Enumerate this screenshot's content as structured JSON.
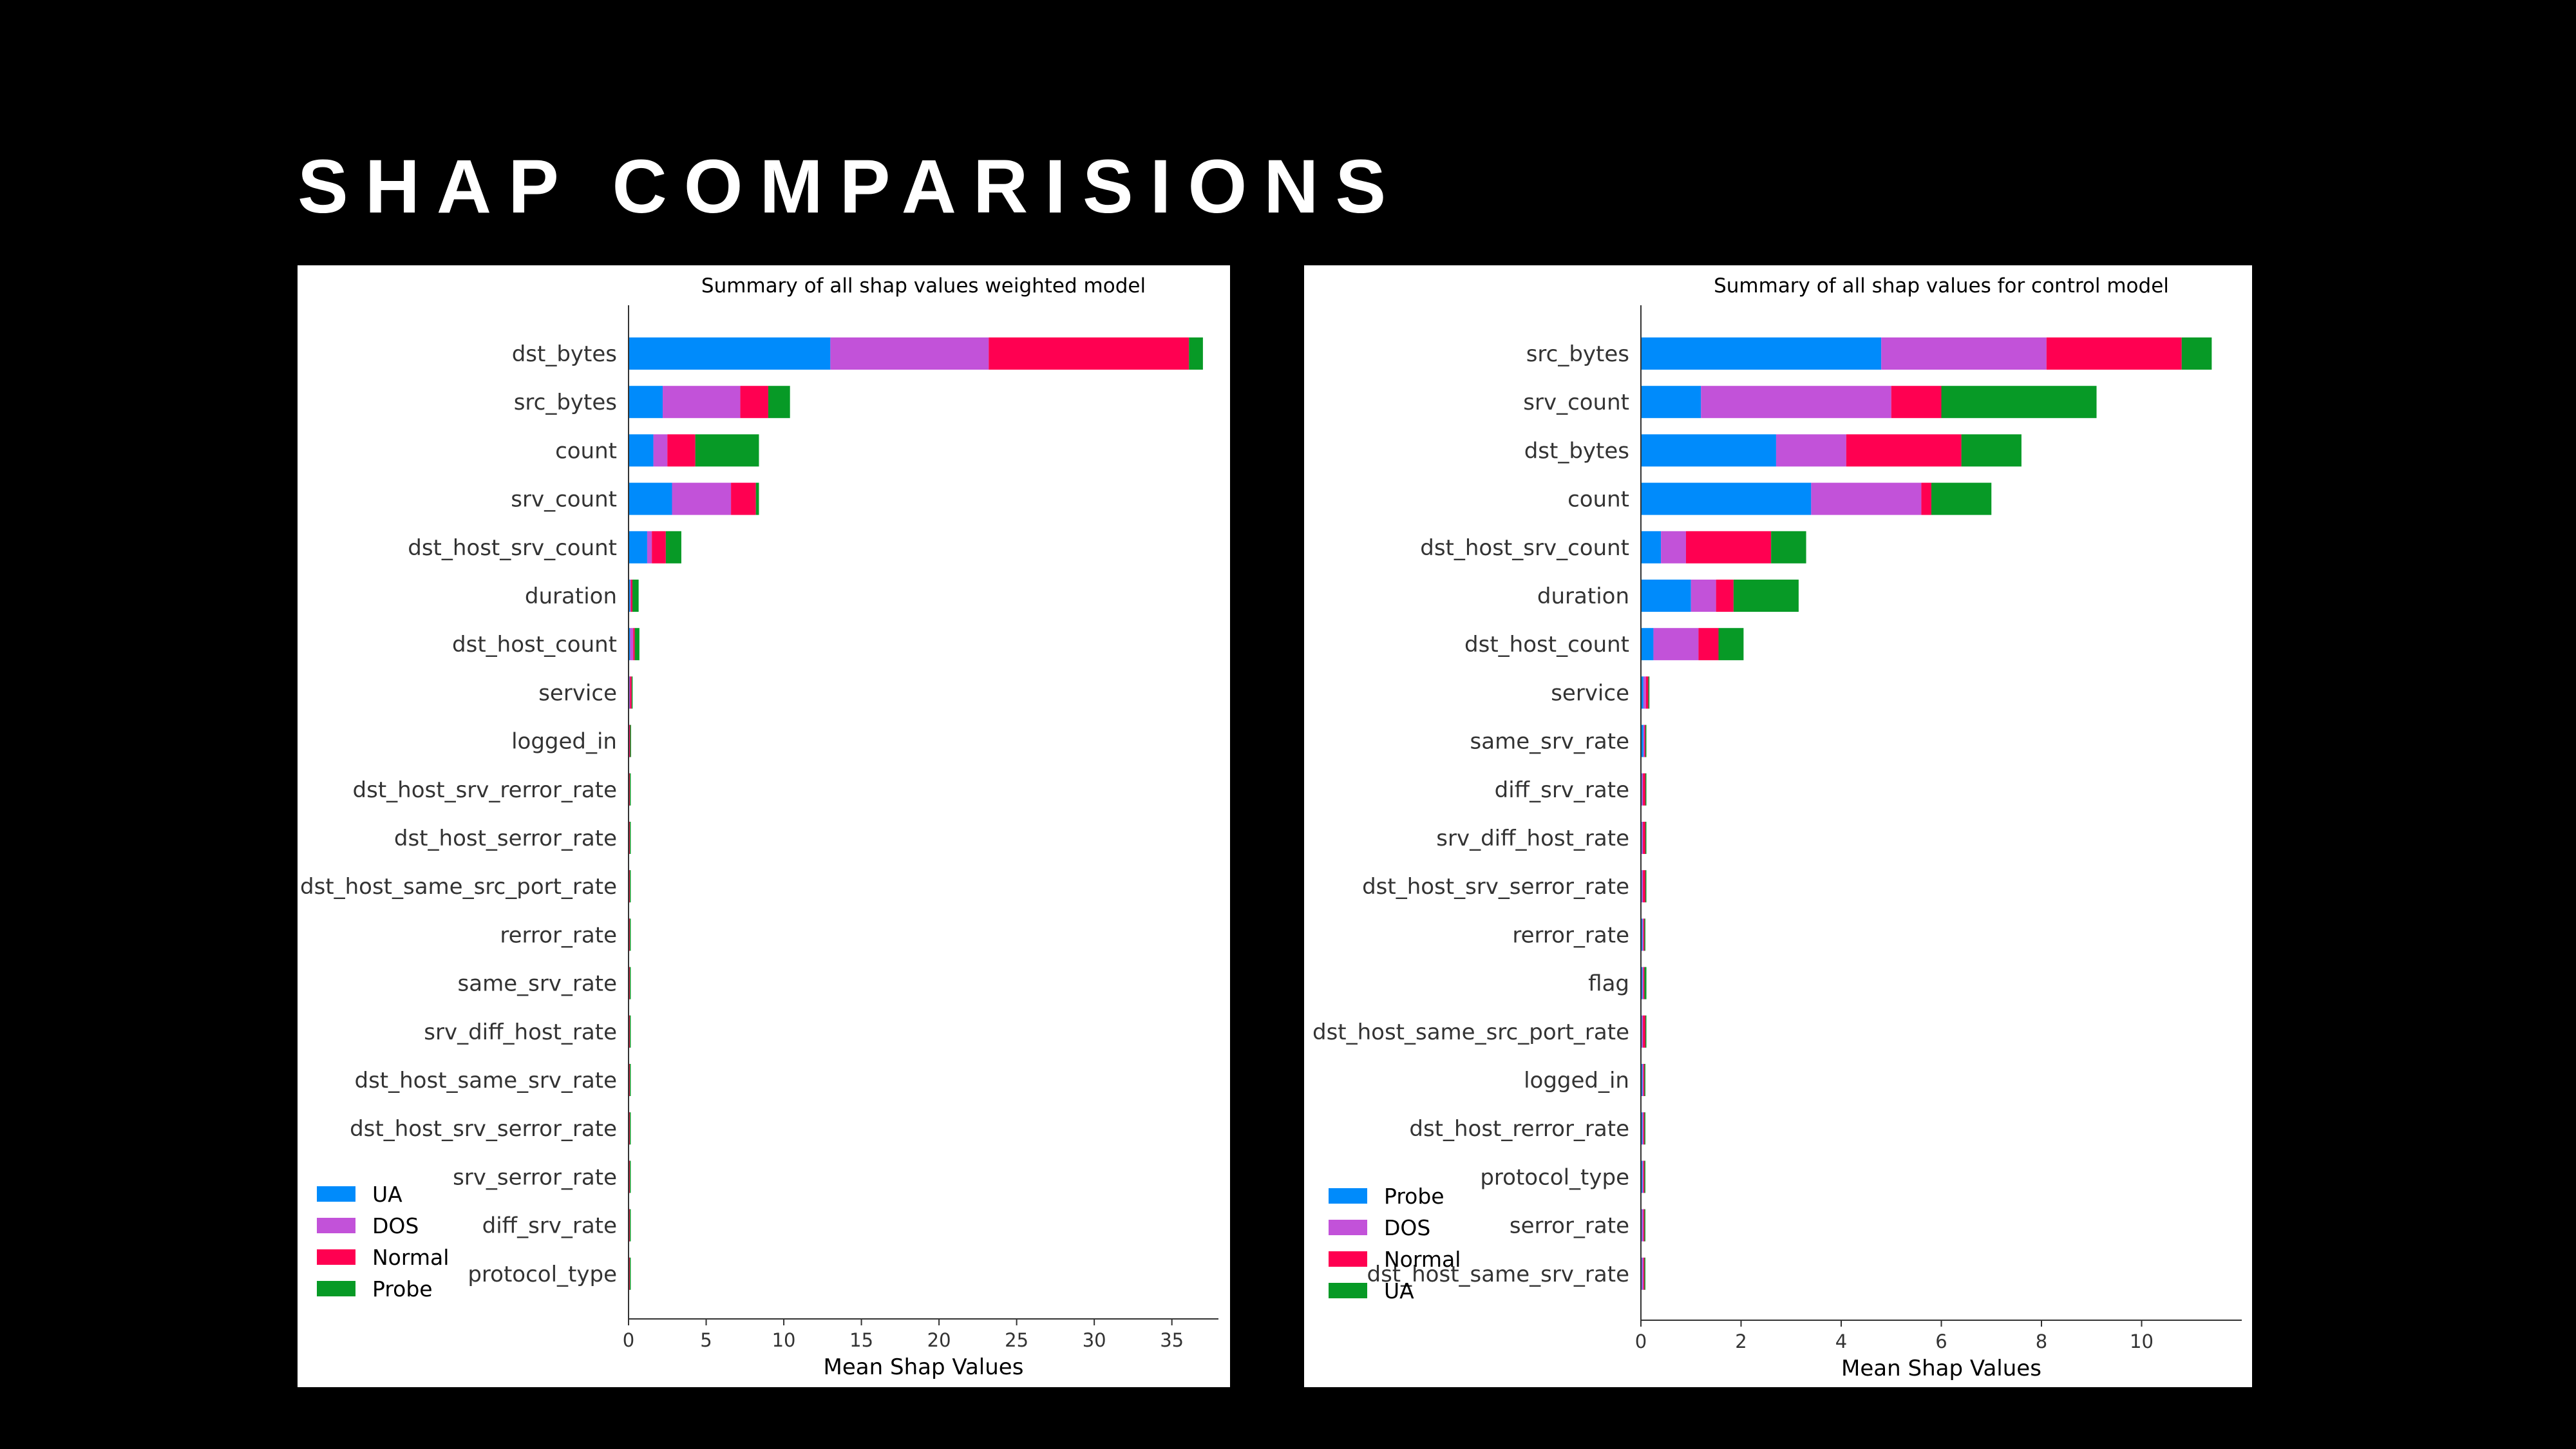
{
  "slide": {
    "title": "SHAP COMPARISIONS"
  },
  "colors": {
    "blue": "#008bfb",
    "purple": "#c252d9",
    "red": "#ff0051",
    "green": "#079a26"
  },
  "chart_data": [
    {
      "type": "bar",
      "orientation": "horizontal",
      "stacked": true,
      "title": "Summary of all shap values weighted model",
      "xlabel": "Mean Shap Values",
      "ylabel": "",
      "xlim": [
        0,
        38
      ],
      "xticks": [
        0,
        5,
        10,
        15,
        20,
        25,
        30,
        35
      ],
      "legend_position": "bottom-left",
      "categories": [
        "dst_bytes",
        "src_bytes",
        "count",
        "srv_count",
        "dst_host_srv_count",
        "duration",
        "dst_host_count",
        "service",
        "logged_in",
        "dst_host_srv_rerror_rate",
        "dst_host_serror_rate",
        "dst_host_same_src_port_rate",
        "rerror_rate",
        "same_srv_rate",
        "srv_diff_host_rate",
        "dst_host_same_srv_rate",
        "dst_host_srv_serror_rate",
        "srv_serror_rate",
        "diff_srv_rate",
        "protocol_type"
      ],
      "series": [
        {
          "name": "UA",
          "color": "#008bfb",
          "values": [
            13.0,
            2.2,
            1.6,
            2.8,
            1.2,
            0.1,
            0.1,
            0.05,
            0.03,
            0.02,
            0.02,
            0.02,
            0.02,
            0.02,
            0.02,
            0.02,
            0.02,
            0.02,
            0.02,
            0.02
          ]
        },
        {
          "name": "DOS",
          "color": "#c252d9",
          "values": [
            10.2,
            5.0,
            0.9,
            3.8,
            0.3,
            0.05,
            0.2,
            0.05,
            0.02,
            0.02,
            0.02,
            0.02,
            0.02,
            0.02,
            0.02,
            0.02,
            0.02,
            0.02,
            0.02,
            0.02
          ]
        },
        {
          "name": "Normal",
          "color": "#ff0051",
          "values": [
            12.9,
            1.8,
            1.8,
            1.6,
            0.9,
            0.1,
            0.1,
            0.1,
            0.05,
            0.04,
            0.04,
            0.04,
            0.04,
            0.04,
            0.04,
            0.04,
            0.04,
            0.04,
            0.04,
            0.04
          ]
        },
        {
          "name": "Probe",
          "color": "#079a26",
          "values": [
            0.9,
            1.4,
            4.1,
            0.2,
            1.0,
            0.4,
            0.3,
            0.02,
            0.01,
            0.01,
            0.01,
            0.01,
            0.01,
            0.01,
            0.01,
            0.01,
            0.01,
            0.01,
            0.01,
            0.01
          ]
        }
      ]
    },
    {
      "type": "bar",
      "orientation": "horizontal",
      "stacked": true,
      "title": "Summary of all shap values for control model",
      "xlabel": "Mean Shap Values",
      "ylabel": "",
      "xlim": [
        0,
        12
      ],
      "xticks": [
        0,
        2,
        4,
        6,
        8,
        10
      ],
      "legend_position": "bottom-left",
      "categories": [
        "src_bytes",
        "srv_count",
        "dst_bytes",
        "count",
        "dst_host_srv_count",
        "duration",
        "dst_host_count",
        "service",
        "same_srv_rate",
        "diff_srv_rate",
        "srv_diff_host_rate",
        "dst_host_srv_serror_rate",
        "rerror_rate",
        "flag",
        "dst_host_same_src_port_rate",
        "logged_in",
        "dst_host_rerror_rate",
        "protocol_type",
        "serror_rate",
        "dst_host_same_srv_rate"
      ],
      "series": [
        {
          "name": "Probe",
          "color": "#008bfb",
          "values": [
            4.8,
            1.2,
            2.7,
            3.4,
            0.4,
            1.0,
            0.25,
            0.05,
            0.05,
            0.02,
            0.02,
            0.02,
            0.03,
            0.03,
            0.02,
            0.03,
            0.03,
            0.03,
            0.02,
            0.02
          ]
        },
        {
          "name": "DOS",
          "color": "#c252d9",
          "values": [
            3.3,
            3.8,
            1.4,
            2.2,
            0.5,
            0.5,
            0.9,
            0.05,
            0.02,
            0.02,
            0.02,
            0.02,
            0.02,
            0.02,
            0.02,
            0.02,
            0.02,
            0.02,
            0.03,
            0.03
          ]
        },
        {
          "name": "Normal",
          "color": "#ff0051",
          "values": [
            2.7,
            1.0,
            2.3,
            0.2,
            1.7,
            0.35,
            0.4,
            0.05,
            0.02,
            0.05,
            0.05,
            0.05,
            0.02,
            0.02,
            0.05,
            0.02,
            0.02,
            0.02,
            0.02,
            0.02
          ]
        },
        {
          "name": "UA",
          "color": "#079a26",
          "values": [
            0.6,
            3.1,
            1.2,
            1.2,
            0.7,
            1.3,
            0.5,
            0.02,
            0.01,
            0.01,
            0.01,
            0.01,
            0.01,
            0.04,
            0.01,
            0.01,
            0.01,
            0.01,
            0.01,
            0.01
          ]
        }
      ]
    }
  ]
}
